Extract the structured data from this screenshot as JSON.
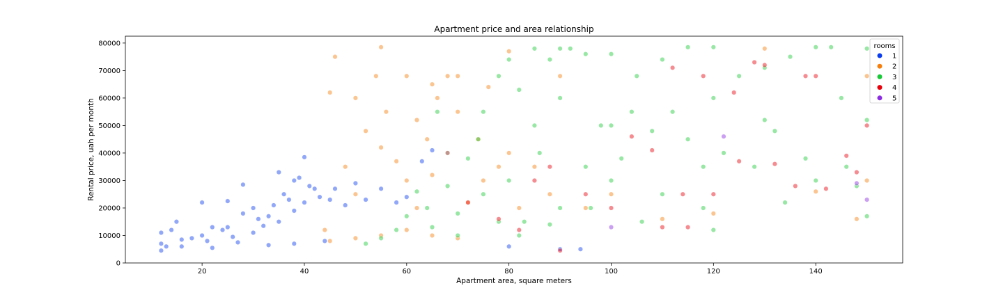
{
  "chart_data": {
    "type": "scatter",
    "title": "Apartment price and area relationship",
    "xlabel": "Apartment area, square meters",
    "ylabel": "Rental price, uah per month",
    "xlim": [
      5,
      157
    ],
    "ylim": [
      0,
      82500
    ],
    "x_ticks": [
      20,
      40,
      60,
      80,
      100,
      120,
      140
    ],
    "y_ticks": [
      0,
      10000,
      20000,
      30000,
      40000,
      50000,
      60000,
      70000,
      80000
    ],
    "grid": false,
    "legend": {
      "title": "rooms",
      "position": "top-right"
    },
    "point_alpha": 0.45,
    "series": [
      {
        "name": "1",
        "color": "#0a3cf0",
        "x": [
          12,
          12,
          13,
          14,
          15,
          16,
          18,
          20,
          20,
          21,
          22,
          24,
          25,
          25,
          26,
          28,
          28,
          30,
          30,
          31,
          32,
          33,
          34,
          35,
          35,
          36,
          37,
          38,
          38,
          39,
          40,
          40,
          41,
          42,
          43,
          45,
          46,
          48,
          50,
          52,
          55,
          58,
          60,
          63,
          65,
          68,
          80,
          90,
          94,
          12,
          16,
          22,
          27,
          33,
          38,
          44
        ],
        "y": [
          4500,
          11000,
          6000,
          12000,
          15000,
          8500,
          9000,
          10000,
          22000,
          8000,
          13000,
          12000,
          22500,
          13000,
          9500,
          28500,
          18000,
          11000,
          20000,
          16000,
          13500,
          17000,
          21000,
          15000,
          33000,
          25000,
          23000,
          19000,
          30000,
          31000,
          38500,
          22000,
          28000,
          27000,
          24000,
          23000,
          27000,
          21000,
          29000,
          23000,
          27000,
          22000,
          24000,
          37000,
          41000,
          40000,
          6000,
          5000,
          5000,
          7000,
          6000,
          5500,
          7500,
          6500,
          7000,
          8000
        ]
      },
      {
        "name": "2",
        "color": "#f77e0c",
        "x": [
          44,
          45,
          46,
          48,
          50,
          50,
          52,
          54,
          55,
          55,
          56,
          58,
          60,
          60,
          62,
          62,
          64,
          65,
          65,
          66,
          68,
          68,
          70,
          70,
          72,
          74,
          75,
          76,
          78,
          80,
          80,
          82,
          85,
          88,
          90,
          95,
          100,
          110,
          120,
          130,
          140,
          148,
          150,
          150,
          45,
          50,
          55,
          60,
          65,
          70
        ],
        "y": [
          12000,
          62000,
          75000,
          35000,
          60000,
          25000,
          48000,
          68000,
          78500,
          42000,
          55000,
          37000,
          68000,
          30000,
          52000,
          20000,
          45000,
          65000,
          32000,
          60000,
          68000,
          40000,
          68000,
          55000,
          22000,
          45000,
          30000,
          64000,
          35000,
          77000,
          40000,
          20000,
          35000,
          25000,
          68000,
          20000,
          25000,
          16000,
          18000,
          78000,
          26000,
          16000,
          30000,
          68000,
          8000,
          9000,
          10000,
          12000,
          10000,
          9000
        ]
      },
      {
        "name": "3",
        "color": "#1ac938",
        "x": [
          52,
          55,
          58,
          60,
          62,
          64,
          65,
          66,
          68,
          70,
          70,
          72,
          74,
          75,
          75,
          78,
          78,
          80,
          80,
          82,
          83,
          85,
          85,
          86,
          88,
          90,
          90,
          90,
          92,
          95,
          95,
          98,
          100,
          100,
          100,
          102,
          104,
          105,
          108,
          110,
          110,
          112,
          115,
          115,
          118,
          120,
          120,
          120,
          122,
          125,
          128,
          130,
          130,
          132,
          135,
          138,
          140,
          140,
          143,
          145,
          148,
          150,
          150,
          150,
          82,
          88,
          96,
          106,
          118,
          134,
          146
        ],
        "y": [
          7000,
          9000,
          12000,
          17000,
          26000,
          20000,
          13000,
          55000,
          28000,
          18000,
          10000,
          38000,
          45000,
          55000,
          25000,
          68000,
          15000,
          74000,
          30000,
          63000,
          15000,
          78000,
          50000,
          40000,
          74000,
          78000,
          60000,
          20000,
          78000,
          76000,
          35000,
          50000,
          76000,
          50000,
          30000,
          38000,
          55000,
          68000,
          48000,
          74000,
          25000,
          55000,
          78500,
          45000,
          35000,
          78500,
          60000,
          12000,
          40000,
          68000,
          35000,
          71000,
          52000,
          48000,
          75000,
          38000,
          78500,
          30000,
          78500,
          60000,
          28000,
          78000,
          52000,
          17000,
          10000,
          14000,
          20000,
          15000,
          20000,
          22000,
          35000
        ]
      },
      {
        "name": "4",
        "color": "#e8000b",
        "x": [
          72,
          78,
          82,
          85,
          88,
          90,
          95,
          100,
          104,
          108,
          110,
          112,
          114,
          115,
          118,
          120,
          124,
          125,
          128,
          130,
          132,
          136,
          138,
          140,
          142,
          146,
          148,
          150
        ],
        "y": [
          22000,
          16000,
          12000,
          30000,
          35000,
          4500,
          25000,
          20000,
          46000,
          41000,
          13000,
          71000,
          25000,
          13000,
          68000,
          25000,
          62000,
          37000,
          73000,
          72000,
          36000,
          28000,
          68000,
          68000,
          27000,
          39000,
          33000,
          50000
        ]
      },
      {
        "name": "5",
        "color": "#8b2be2",
        "x": [
          100,
          122,
          148,
          150
        ],
        "y": [
          13000,
          46000,
          29000,
          23000
        ]
      }
    ]
  }
}
